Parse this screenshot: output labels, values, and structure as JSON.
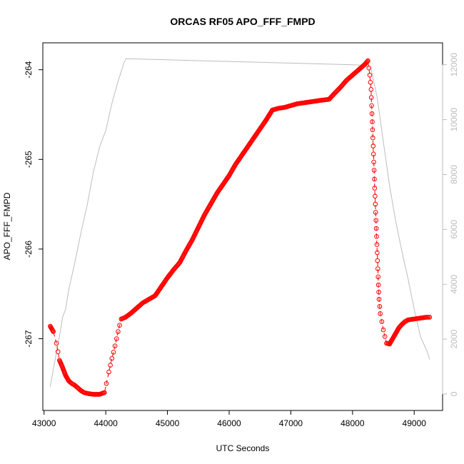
{
  "chart_data": {
    "type": "scatter",
    "title": "ORCAS RF05 APO_FFF_FMPD",
    "xlabel": "UTC Seconds",
    "ylabel": "APO_FFF_FMPD",
    "y2label": "",
    "xlim": [
      42980,
      49460
    ],
    "ylim": [
      -267.8,
      -263.7
    ],
    "y2lim": [
      -600,
      12800
    ],
    "x_ticks": [
      43000,
      44000,
      45000,
      46000,
      47000,
      48000,
      49000
    ],
    "y_ticks": [
      -264,
      -265,
      -266,
      -267
    ],
    "y2_ticks": [
      0,
      2000,
      4000,
      6000,
      8000,
      10000,
      12000
    ],
    "grid": false,
    "legend": "none",
    "colors": {
      "primary": "#ff0000",
      "secondary": "#bdbdbd",
      "axis": "#000000"
    },
    "series": [
      {
        "style": "points-with-line",
        "color": "#ff0000",
        "points": [
          [
            43100,
            -266.86
          ],
          [
            43150,
            -266.92
          ],
          [
            43200,
            -267.05
          ],
          [
            43250,
            -267.24
          ],
          [
            43300,
            -267.32
          ],
          [
            43350,
            -267.41
          ],
          [
            43400,
            -267.47
          ],
          [
            43450,
            -267.5
          ],
          [
            43500,
            -267.52
          ],
          [
            43550,
            -267.55
          ],
          [
            43600,
            -267.58
          ],
          [
            43650,
            -267.6
          ],
          [
            43700,
            -267.61
          ],
          [
            43800,
            -267.62
          ],
          [
            43900,
            -267.62
          ],
          [
            43980,
            -267.6
          ],
          [
            44010,
            -267.5
          ],
          [
            44050,
            -267.37
          ],
          [
            44100,
            -267.22
          ],
          [
            44150,
            -267.08
          ],
          [
            44200,
            -266.92
          ],
          [
            44250,
            -266.78
          ],
          [
            44320,
            -266.76
          ],
          [
            44400,
            -266.72
          ],
          [
            44500,
            -266.66
          ],
          [
            44600,
            -266.6
          ],
          [
            44700,
            -266.56
          ],
          [
            44800,
            -266.52
          ],
          [
            44900,
            -266.42
          ],
          [
            45000,
            -266.32
          ],
          [
            45100,
            -266.23
          ],
          [
            45200,
            -266.15
          ],
          [
            45300,
            -266.02
          ],
          [
            45400,
            -265.9
          ],
          [
            45500,
            -265.76
          ],
          [
            45600,
            -265.62
          ],
          [
            45700,
            -265.5
          ],
          [
            45800,
            -265.38
          ],
          [
            45900,
            -265.28
          ],
          [
            46000,
            -265.18
          ],
          [
            46100,
            -265.06
          ],
          [
            46200,
            -264.96
          ],
          [
            46300,
            -264.86
          ],
          [
            46400,
            -264.76
          ],
          [
            46500,
            -264.66
          ],
          [
            46600,
            -264.56
          ],
          [
            46700,
            -264.45
          ],
          [
            46800,
            -264.43
          ],
          [
            46900,
            -264.42
          ],
          [
            47000,
            -264.4
          ],
          [
            47100,
            -264.38
          ],
          [
            47200,
            -264.37
          ],
          [
            47300,
            -264.36
          ],
          [
            47400,
            -264.35
          ],
          [
            47500,
            -264.34
          ],
          [
            47620,
            -264.33
          ],
          [
            47700,
            -264.27
          ],
          [
            47800,
            -264.2
          ],
          [
            47900,
            -264.12
          ],
          [
            48000,
            -264.06
          ],
          [
            48100,
            -264.0
          ],
          [
            48200,
            -263.94
          ],
          [
            48250,
            -263.9
          ],
          [
            48280,
            -264.06
          ],
          [
            48300,
            -264.22
          ],
          [
            48310,
            -264.4
          ],
          [
            48320,
            -264.58
          ],
          [
            48330,
            -264.76
          ],
          [
            48340,
            -264.94
          ],
          [
            48350,
            -265.12
          ],
          [
            48360,
            -265.32
          ],
          [
            48370,
            -265.5
          ],
          [
            48380,
            -265.68
          ],
          [
            48390,
            -265.86
          ],
          [
            48400,
            -266.04
          ],
          [
            48410,
            -266.22
          ],
          [
            48420,
            -266.4
          ],
          [
            48430,
            -266.56
          ],
          [
            48450,
            -266.72
          ],
          [
            48500,
            -266.9
          ],
          [
            48550,
            -267.05
          ],
          [
            48600,
            -267.06
          ],
          [
            48650,
            -267.0
          ],
          [
            48700,
            -266.94
          ],
          [
            48750,
            -266.88
          ],
          [
            48800,
            -266.84
          ],
          [
            48850,
            -266.81
          ],
          [
            48900,
            -266.79
          ],
          [
            49000,
            -266.78
          ],
          [
            49100,
            -266.77
          ],
          [
            49200,
            -266.76
          ],
          [
            49250,
            -266.76
          ]
        ]
      },
      {
        "style": "line",
        "axis": "right",
        "color": "#bdbdbd",
        "points": [
          [
            43100,
            270
          ],
          [
            43150,
            900
          ],
          [
            43200,
            1500
          ],
          [
            43250,
            2100
          ],
          [
            43300,
            2800
          ],
          [
            43350,
            3100
          ],
          [
            43400,
            3800
          ],
          [
            43500,
            4800
          ],
          [
            43600,
            5900
          ],
          [
            43700,
            6900
          ],
          [
            43800,
            8100
          ],
          [
            43900,
            9000
          ],
          [
            44000,
            9600
          ],
          [
            44100,
            10600
          ],
          [
            44200,
            11400
          ],
          [
            44300,
            12100
          ],
          [
            44330,
            12220
          ],
          [
            45000,
            12180
          ],
          [
            46000,
            12120
          ],
          [
            47000,
            12060
          ],
          [
            48000,
            12000
          ],
          [
            48200,
            11980
          ],
          [
            48300,
            11850
          ],
          [
            48400,
            10800
          ],
          [
            48500,
            9200
          ],
          [
            48600,
            7600
          ],
          [
            48700,
            6300
          ],
          [
            48800,
            5200
          ],
          [
            48900,
            4200
          ],
          [
            49000,
            3100
          ],
          [
            49100,
            2100
          ],
          [
            49200,
            1600
          ],
          [
            49250,
            1260
          ]
        ]
      }
    ]
  }
}
